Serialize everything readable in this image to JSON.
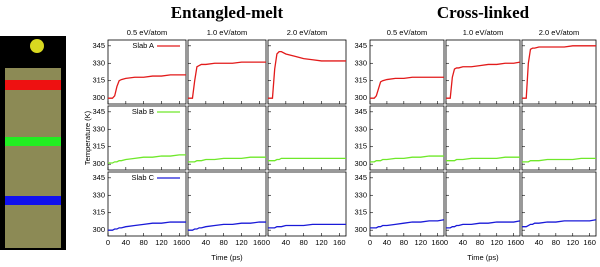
{
  "chart_data": {
    "type": "line",
    "x_label": "Time (ps)",
    "y_label": "Temperature (K)",
    "xlim": [
      0,
      175
    ],
    "ylim": [
      295,
      350
    ],
    "xticks": [
      0,
      40,
      80,
      120,
      160
    ],
    "yticks": [
      300,
      315,
      330,
      345
    ],
    "x": [
      0,
      10,
      15,
      20,
      25,
      30,
      40,
      60,
      80,
      100,
      120,
      140,
      160,
      175
    ],
    "slabs": [
      {
        "name": "Slab A",
        "color": "#e21a1a"
      },
      {
        "name": "Slab B",
        "color": "#6fe82a"
      },
      {
        "name": "Slab C",
        "color": "#1a1ad8"
      }
    ],
    "groups": [
      {
        "title": "Entangled-melt",
        "columns": [
          "0.5 eV/atom",
          "1.0 eV/atom",
          "2.0 eV/atom"
        ],
        "panels": [
          [
            [
              300,
              300,
              302,
              310,
              315,
              316,
              317,
              318,
              318,
              319,
              319,
              320,
              320,
              320
            ],
            [
              300,
              300,
              315,
              327,
              328,
              329,
              329,
              330,
              330,
              330,
              331,
              331,
              331,
              331
            ],
            [
              300,
              300,
              325,
              338,
              340,
              340,
              338,
              336,
              334,
              333,
              332,
              332,
              332,
              332
            ]
          ],
          [
            [
              301,
              301,
              302,
              302,
              303,
              303,
              304,
              305,
              306,
              306,
              307,
              307,
              308,
              308
            ],
            [
              302,
              302,
              302,
              303,
              303,
              303,
              304,
              304,
              305,
              305,
              305,
              306,
              306,
              306
            ],
            [
              303,
              303,
              303,
              304,
              304,
              305,
              305,
              305,
              305,
              305,
              305,
              305,
              305,
              305
            ]
          ],
          [
            [
              300,
              300,
              301,
              301,
              302,
              302,
              303,
              304,
              305,
              306,
              306,
              307,
              307,
              307
            ],
            [
              300,
              300,
              301,
              301,
              302,
              302,
              303,
              304,
              305,
              305,
              306,
              306,
              307,
              307
            ],
            [
              302,
              302,
              302,
              303,
              303,
              303,
              304,
              304,
              304,
              305,
              305,
              305,
              305,
              305
            ]
          ]
        ]
      },
      {
        "title": "Cross-linked",
        "columns": [
          "0.5 eV/atom",
          "1.0 eV/atom",
          "2.0 eV/atom"
        ],
        "panels": [
          [
            [
              300,
              300,
              302,
              308,
              314,
              315,
              316,
              317,
              317,
              318,
              318,
              318,
              318,
              318
            ],
            [
              300,
              300,
              318,
              325,
              326,
              326,
              327,
              327,
              328,
              329,
              329,
              330,
              330,
              331
            ],
            [
              300,
              300,
              330,
              342,
              343,
              343,
              344,
              344,
              344,
              344,
              345,
              345,
              345,
              345
            ]
          ],
          [
            [
              302,
              302,
              303,
              303,
              303,
              304,
              304,
              305,
              305,
              306,
              306,
              307,
              307,
              307
            ],
            [
              303,
              303,
              303,
              303,
              304,
              304,
              304,
              305,
              305,
              305,
              305,
              306,
              306,
              306
            ],
            [
              302,
              302,
              302,
              303,
              303,
              303,
              303,
              304,
              304,
              304,
              304,
              305,
              305,
              305
            ]
          ],
          [
            [
              302,
              302,
              302,
              303,
              303,
              304,
              304,
              305,
              306,
              307,
              307,
              308,
              308,
              309
            ],
            [
              302,
              302,
              303,
              303,
              304,
              304,
              305,
              305,
              306,
              306,
              307,
              307,
              307,
              308
            ],
            [
              303,
              303,
              304,
              305,
              305,
              306,
              306,
              307,
              307,
              308,
              308,
              308,
              308,
              309
            ]
          ]
        ]
      }
    ]
  }
}
